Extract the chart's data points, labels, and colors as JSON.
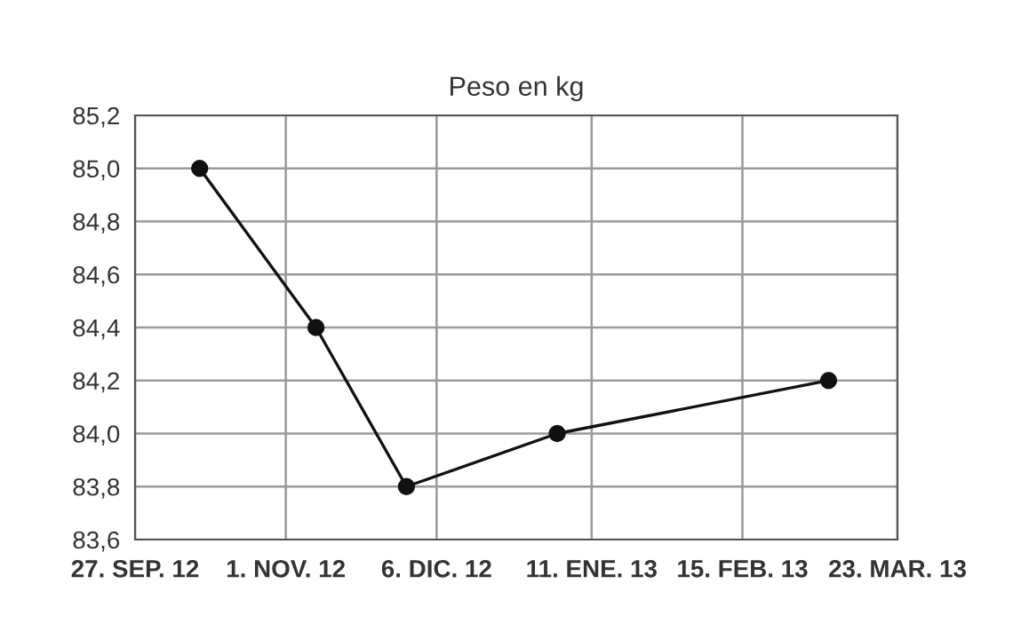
{
  "chart_data": {
    "type": "line",
    "title": "Peso en kg",
    "x": [
      "2012-10-12",
      "2012-11-08",
      "2012-11-29",
      "2013-01-03",
      "2013-03-07"
    ],
    "series": [
      {
        "color": "#111111",
        "values": [
          85.0,
          84.4,
          83.8,
          84.0,
          84.2
        ]
      }
    ],
    "xlim": [
      "2012-09-27",
      "2013-03-23"
    ],
    "xticks": [
      {
        "value": "2012-09-27",
        "label": "27. SEP. 12"
      },
      {
        "value": "2012-11-01",
        "label": "1. NOV. 12"
      },
      {
        "value": "2012-12-06",
        "label": "6. DIC. 12"
      },
      {
        "value": "2013-01-11",
        "label": "11. ENE. 13"
      },
      {
        "value": "2013-02-15",
        "label": "15. FEB. 13"
      },
      {
        "value": "2013-03-23",
        "label": "23. MAR. 13"
      }
    ],
    "ylim": [
      83.6,
      85.2
    ],
    "yticks": [
      {
        "value": 83.6,
        "label": "83,6"
      },
      {
        "value": 83.8,
        "label": "83,8"
      },
      {
        "value": 84.0,
        "label": "84,0"
      },
      {
        "value": 84.2,
        "label": "84,2"
      },
      {
        "value": 84.4,
        "label": "84,4"
      },
      {
        "value": 84.6,
        "label": "84,6"
      },
      {
        "value": 84.8,
        "label": "84,8"
      },
      {
        "value": 85.0,
        "label": "85,0"
      },
      {
        "value": 85.2,
        "label": "85,2"
      }
    ],
    "grid": true,
    "marker": "circle",
    "line_style": "solid"
  }
}
